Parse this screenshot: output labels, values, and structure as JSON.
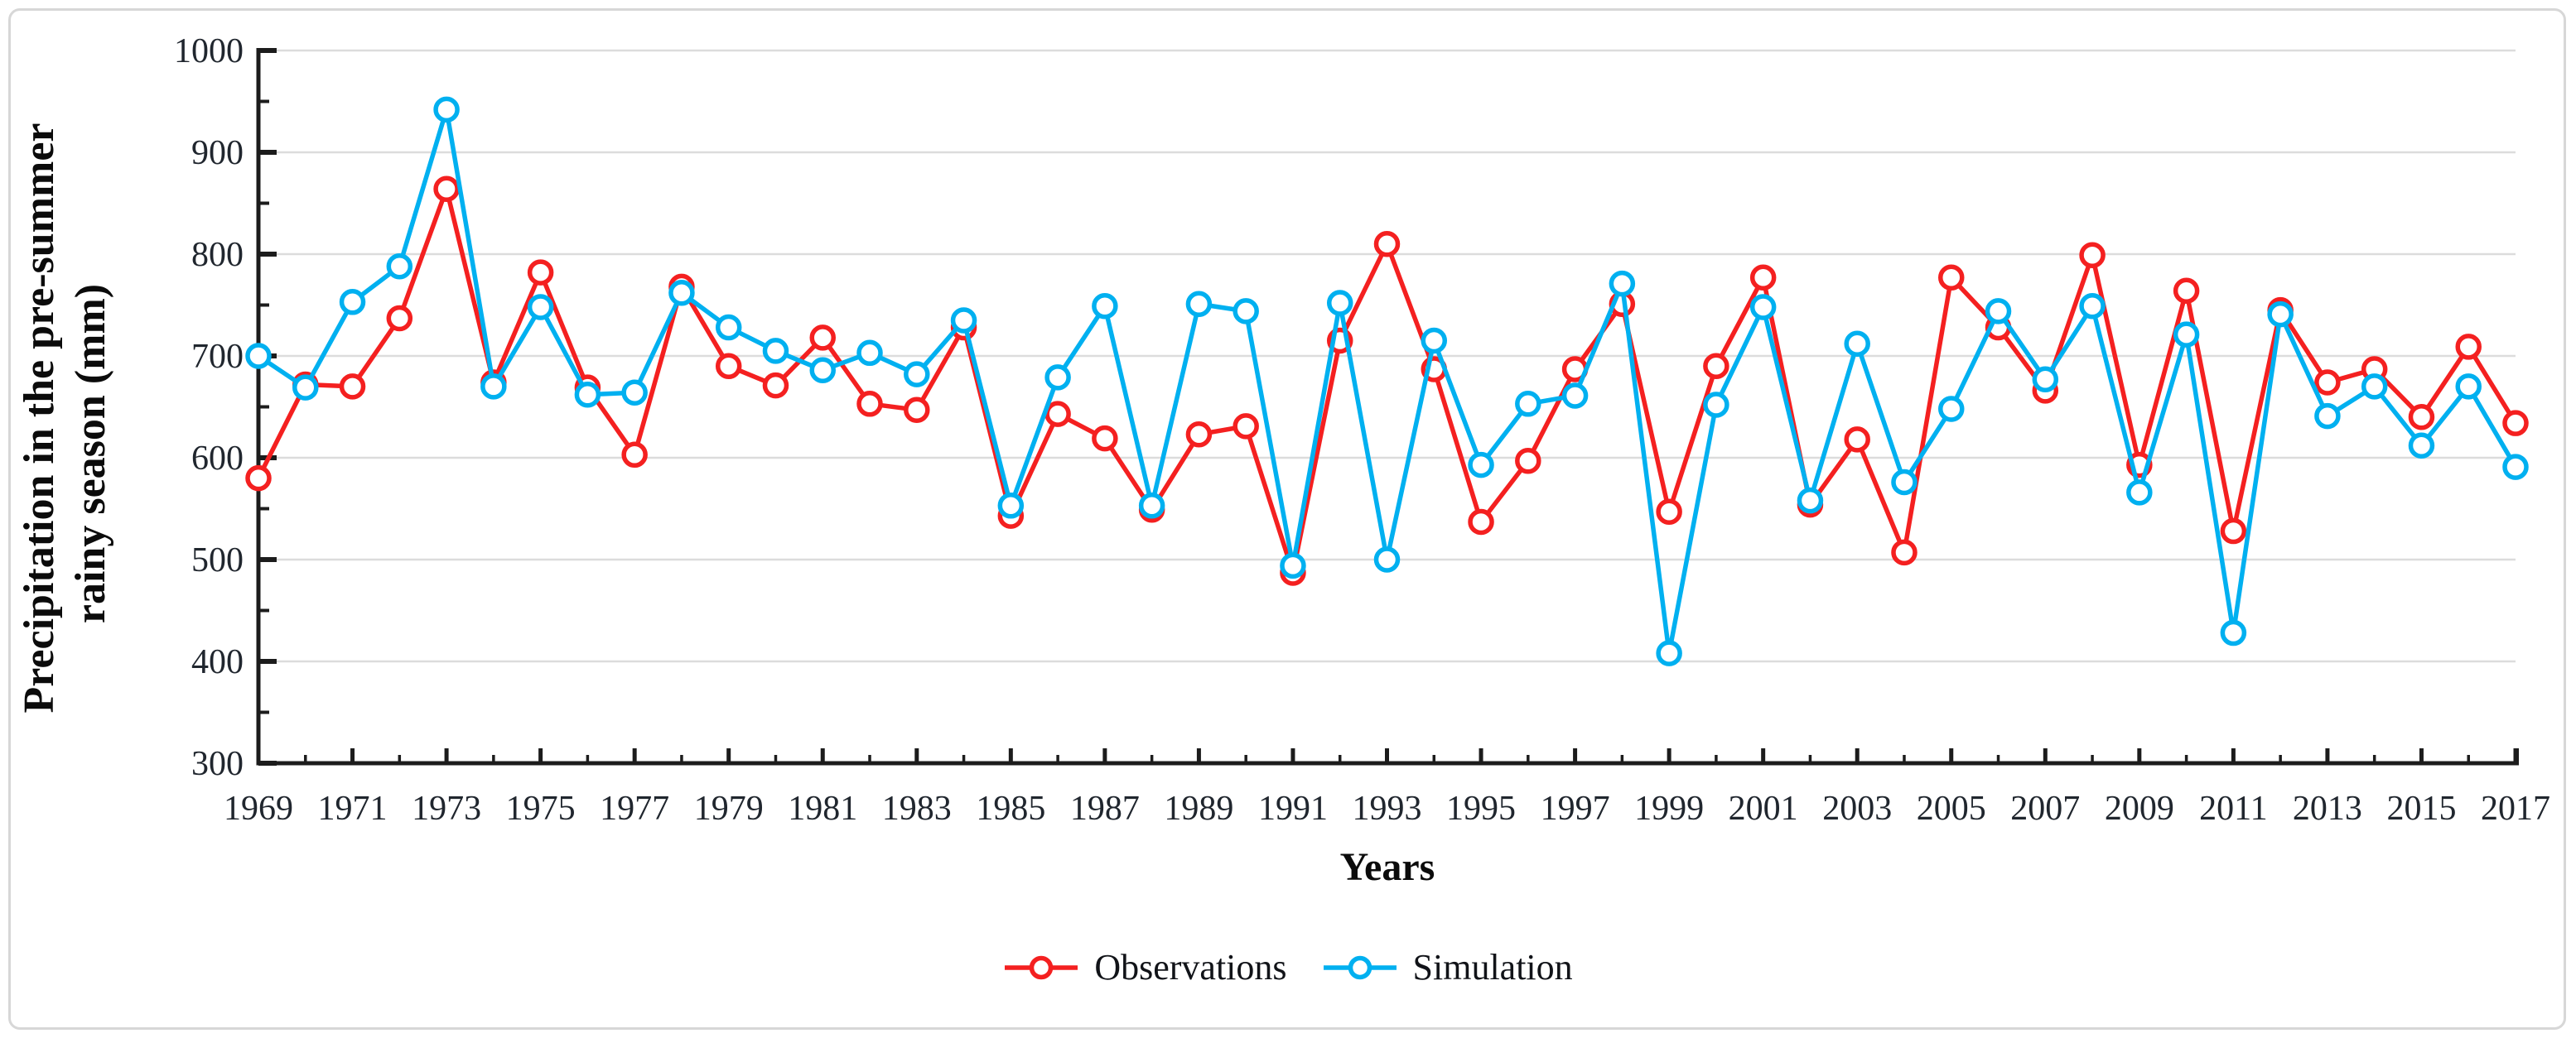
{
  "figure": {
    "y_axis_title_line1": "Precipitation in the pre-summer",
    "y_axis_title_line2": "rainy season (mm)",
    "x_axis_title": "Years"
  },
  "chart_data": {
    "type": "line",
    "title": "",
    "xlabel": "Years",
    "ylabel": "Precipitation in the pre-summer rainy season (mm)",
    "ylim": [
      300,
      1000
    ],
    "grid": "horizontal-only",
    "legend_position": "bottom-center",
    "y_ticks_major": [
      300,
      400,
      500,
      600,
      700,
      800,
      900,
      1000
    ],
    "y_ticks_minor": [
      350,
      450,
      550,
      650,
      750,
      850,
      950
    ],
    "y_gridlines": [
      400,
      500,
      600,
      700,
      800,
      900,
      1000
    ],
    "x_tick_labels": [
      1969,
      1971,
      1973,
      1975,
      1977,
      1979,
      1981,
      1983,
      1985,
      1987,
      1989,
      1991,
      1993,
      1995,
      1997,
      1999,
      2001,
      2003,
      2005,
      2007,
      2009,
      2011,
      2013,
      2015,
      2017
    ],
    "x": [
      1969,
      1970,
      1971,
      1972,
      1973,
      1974,
      1975,
      1976,
      1977,
      1978,
      1979,
      1980,
      1981,
      1982,
      1983,
      1984,
      1985,
      1986,
      1987,
      1988,
      1989,
      1990,
      1991,
      1992,
      1993,
      1994,
      1995,
      1996,
      1997,
      1998,
      1999,
      2000,
      2001,
      2002,
      2003,
      2004,
      2005,
      2006,
      2007,
      2008,
      2009,
      2010,
      2011,
      2012,
      2013,
      2014,
      2015,
      2016,
      2017
    ],
    "series": [
      {
        "name": "Observations",
        "color": "#f42020",
        "marker": "open-circle",
        "values": [
          580,
          672,
          670,
          737,
          864,
          674,
          782,
          669,
          603,
          768,
          690,
          671,
          718,
          653,
          647,
          728,
          543,
          643,
          619,
          549,
          623,
          631,
          487,
          715,
          810,
          687,
          537,
          597,
          687,
          751,
          547,
          690,
          777,
          554,
          618,
          507,
          777,
          728,
          666,
          799,
          593,
          764,
          528,
          745,
          674,
          687,
          640,
          709,
          634
        ]
      },
      {
        "name": "Simulation",
        "color": "#00b0f0",
        "marker": "open-circle",
        "values": [
          700,
          669,
          753,
          788,
          942,
          670,
          748,
          662,
          664,
          762,
          728,
          705,
          686,
          703,
          682,
          735,
          553,
          679,
          749,
          553,
          751,
          744,
          494,
          752,
          500,
          715,
          593,
          653,
          661,
          771,
          408,
          652,
          748,
          558,
          712,
          576,
          648,
          744,
          677,
          749,
          566,
          721,
          428,
          741,
          641,
          670,
          612,
          670,
          591
        ]
      }
    ]
  }
}
